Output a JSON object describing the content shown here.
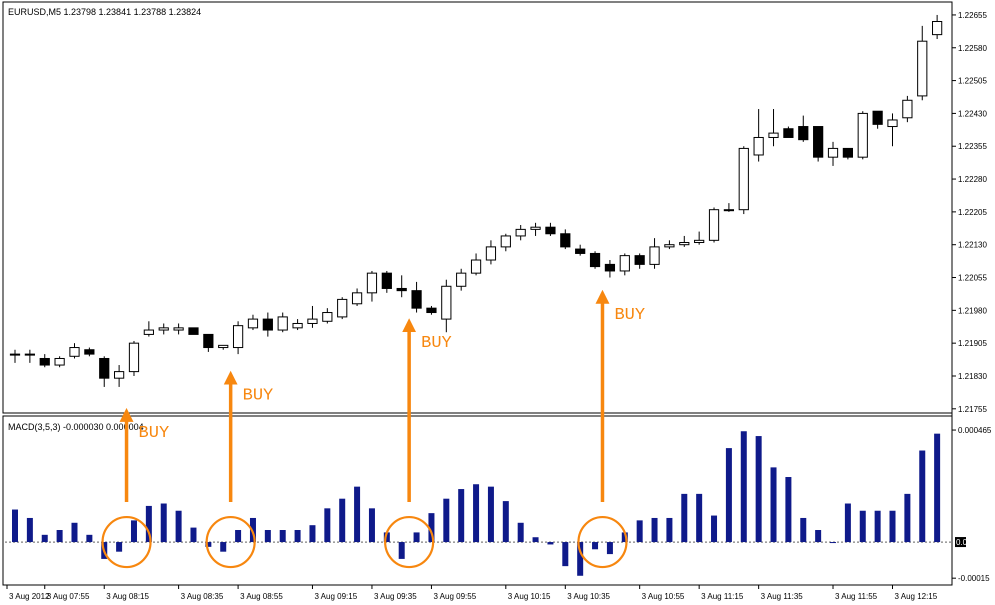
{
  "chart_data": [
    {
      "type": "candlestick",
      "header": "EURUSD,M5  1.23798 1.23841 1.23788 1.23824",
      "ylim": [
        1.2175,
        1.2268
      ],
      "y_ticks": [
        "1.22655",
        "1.22580",
        "1.22505",
        "1.22430",
        "1.22355",
        "1.22280",
        "1.22205",
        "1.22130",
        "1.22055",
        "1.21980",
        "1.21905",
        "1.21830",
        "1.21755"
      ],
      "y_tick_values": [
        1.22655,
        1.2258,
        1.22505,
        1.2243,
        1.22355,
        1.2228,
        1.22205,
        1.2213,
        1.22055,
        1.2198,
        1.21905,
        1.2183,
        1.21755
      ],
      "candles": [
        {
          "o": 1.2188,
          "h": 1.2189,
          "l": 1.2186,
          "c": 1.2188
        },
        {
          "o": 1.2188,
          "h": 1.2189,
          "l": 1.2186,
          "c": 1.2188
        },
        {
          "o": 1.2187,
          "h": 1.2188,
          "l": 1.2185,
          "c": 1.21855
        },
        {
          "o": 1.21855,
          "h": 1.21875,
          "l": 1.2185,
          "c": 1.2187
        },
        {
          "o": 1.21875,
          "h": 1.21905,
          "l": 1.2187,
          "c": 1.21895
        },
        {
          "o": 1.2189,
          "h": 1.21895,
          "l": 1.21875,
          "c": 1.2188
        },
        {
          "o": 1.2187,
          "h": 1.21875,
          "l": 1.21805,
          "c": 1.21825
        },
        {
          "o": 1.21825,
          "h": 1.21855,
          "l": 1.21805,
          "c": 1.2184
        },
        {
          "o": 1.2184,
          "h": 1.2191,
          "l": 1.2183,
          "c": 1.21905
        },
        {
          "o": 1.21925,
          "h": 1.21955,
          "l": 1.2192,
          "c": 1.21935
        },
        {
          "o": 1.21935,
          "h": 1.2195,
          "l": 1.21925,
          "c": 1.2194
        },
        {
          "o": 1.21935,
          "h": 1.2195,
          "l": 1.21925,
          "c": 1.2194
        },
        {
          "o": 1.2194,
          "h": 1.2194,
          "l": 1.21925,
          "c": 1.21925
        },
        {
          "o": 1.21925,
          "h": 1.21925,
          "l": 1.21885,
          "c": 1.21895
        },
        {
          "o": 1.21895,
          "h": 1.219,
          "l": 1.2189,
          "c": 1.219
        },
        {
          "o": 1.21895,
          "h": 1.21955,
          "l": 1.2188,
          "c": 1.21945
        },
        {
          "o": 1.2194,
          "h": 1.2197,
          "l": 1.21935,
          "c": 1.2196
        },
        {
          "o": 1.2196,
          "h": 1.21975,
          "l": 1.2192,
          "c": 1.21935
        },
        {
          "o": 1.21935,
          "h": 1.21975,
          "l": 1.2193,
          "c": 1.21965
        },
        {
          "o": 1.2194,
          "h": 1.2196,
          "l": 1.21935,
          "c": 1.2195
        },
        {
          "o": 1.2195,
          "h": 1.2199,
          "l": 1.2194,
          "c": 1.2196
        },
        {
          "o": 1.21955,
          "h": 1.21985,
          "l": 1.2195,
          "c": 1.21975
        },
        {
          "o": 1.21965,
          "h": 1.2201,
          "l": 1.2196,
          "c": 1.22005
        },
        {
          "o": 1.21995,
          "h": 1.2203,
          "l": 1.2199,
          "c": 1.2202
        },
        {
          "o": 1.2202,
          "h": 1.2207,
          "l": 1.22,
          "c": 1.22065
        },
        {
          "o": 1.22065,
          "h": 1.2207,
          "l": 1.2202,
          "c": 1.2203
        },
        {
          "o": 1.2203,
          "h": 1.2206,
          "l": 1.2201,
          "c": 1.22025
        },
        {
          "o": 1.22025,
          "h": 1.22045,
          "l": 1.21975,
          "c": 1.21985
        },
        {
          "o": 1.21985,
          "h": 1.2199,
          "l": 1.2197,
          "c": 1.21975
        },
        {
          "o": 1.2196,
          "h": 1.2205,
          "l": 1.2193,
          "c": 1.22035
        },
        {
          "o": 1.22035,
          "h": 1.22075,
          "l": 1.22025,
          "c": 1.22065
        },
        {
          "o": 1.22065,
          "h": 1.2211,
          "l": 1.2206,
          "c": 1.22095
        },
        {
          "o": 1.22095,
          "h": 1.2214,
          "l": 1.22085,
          "c": 1.22125
        },
        {
          "o": 1.22125,
          "h": 1.22155,
          "l": 1.22115,
          "c": 1.2215
        },
        {
          "o": 1.2215,
          "h": 1.22175,
          "l": 1.2214,
          "c": 1.22165
        },
        {
          "o": 1.22165,
          "h": 1.2218,
          "l": 1.2215,
          "c": 1.2217
        },
        {
          "o": 1.2217,
          "h": 1.2218,
          "l": 1.2215,
          "c": 1.22155
        },
        {
          "o": 1.22155,
          "h": 1.22165,
          "l": 1.2212,
          "c": 1.22125
        },
        {
          "o": 1.2212,
          "h": 1.2213,
          "l": 1.22105,
          "c": 1.2211
        },
        {
          "o": 1.2211,
          "h": 1.22115,
          "l": 1.22075,
          "c": 1.2208
        },
        {
          "o": 1.22085,
          "h": 1.22095,
          "l": 1.22055,
          "c": 1.2207
        },
        {
          "o": 1.2207,
          "h": 1.2211,
          "l": 1.2206,
          "c": 1.22105
        },
        {
          "o": 1.22105,
          "h": 1.2211,
          "l": 1.22075,
          "c": 1.22085
        },
        {
          "o": 1.22085,
          "h": 1.22145,
          "l": 1.22075,
          "c": 1.22125
        },
        {
          "o": 1.22125,
          "h": 1.2214,
          "l": 1.2212,
          "c": 1.2213
        },
        {
          "o": 1.2213,
          "h": 1.2215,
          "l": 1.22125,
          "c": 1.22135
        },
        {
          "o": 1.22135,
          "h": 1.2216,
          "l": 1.2213,
          "c": 1.2214
        },
        {
          "o": 1.2214,
          "h": 1.22215,
          "l": 1.22135,
          "c": 1.2221
        },
        {
          "o": 1.2221,
          "h": 1.22225,
          "l": 1.22205,
          "c": 1.2221
        },
        {
          "o": 1.2221,
          "h": 1.22355,
          "l": 1.222,
          "c": 1.2235
        },
        {
          "o": 1.22335,
          "h": 1.2244,
          "l": 1.2232,
          "c": 1.22375
        },
        {
          "o": 1.22375,
          "h": 1.2244,
          "l": 1.22355,
          "c": 1.22385
        },
        {
          "o": 1.22395,
          "h": 1.224,
          "l": 1.22375,
          "c": 1.22375
        },
        {
          "o": 1.224,
          "h": 1.22425,
          "l": 1.22365,
          "c": 1.2237
        },
        {
          "o": 1.224,
          "h": 1.224,
          "l": 1.2232,
          "c": 1.2233
        },
        {
          "o": 1.2233,
          "h": 1.22365,
          "l": 1.2231,
          "c": 1.2235
        },
        {
          "o": 1.2235,
          "h": 1.2235,
          "l": 1.22325,
          "c": 1.2233
        },
        {
          "o": 1.2233,
          "h": 1.22435,
          "l": 1.22325,
          "c": 1.2243
        },
        {
          "o": 1.22435,
          "h": 1.22435,
          "l": 1.22395,
          "c": 1.22405
        },
        {
          "o": 1.224,
          "h": 1.2243,
          "l": 1.22355,
          "c": 1.22415
        },
        {
          "o": 1.2242,
          "h": 1.2247,
          "l": 1.2241,
          "c": 1.2246
        },
        {
          "o": 1.2247,
          "h": 1.2263,
          "l": 1.2246,
          "c": 1.22595
        },
        {
          "o": 1.2261,
          "h": 1.22655,
          "l": 1.226,
          "c": 1.2264
        }
      ]
    },
    {
      "type": "bar",
      "title": "MACD(3,5,3) -0.000030 0.000004",
      "ylim": [
        -0.00017,
        0.000515
      ],
      "y_ticks": [
        "0.000465",
        "0.00",
        "-0.00015"
      ],
      "y_tick_values": [
        0.000465,
        0,
        -0.00015
      ],
      "values": [
        0.000135,
        0.0001,
        3e-05,
        5e-05,
        8e-05,
        3e-05,
        -7e-05,
        -4e-05,
        9e-05,
        0.00015,
        0.00016,
        0.00013,
        6e-05,
        -2e-05,
        -4e-05,
        5e-05,
        0.0001,
        5e-05,
        5e-05,
        5e-05,
        7e-05,
        0.00014,
        0.00018,
        0.00023,
        0.00014,
        4e-05,
        -7e-05,
        4e-05,
        0.00012,
        0.00018,
        0.00022,
        0.00024,
        0.00023,
        0.00017,
        8e-05,
        2e-05,
        -1e-05,
        -0.0001,
        -0.00014,
        -3e-05,
        -5e-05,
        4e-05,
        9e-05,
        0.0001,
        0.0001,
        0.0002,
        0.0002,
        0.00011,
        0.00039,
        0.00046,
        0.00044,
        0.00031,
        0.00027,
        0.0001,
        5e-05,
        0.0,
        0.00016,
        0.00013,
        0.00013,
        0.00013,
        0.0002,
        0.00038,
        0.00045
      ],
      "legend_marker": "0.00"
    }
  ],
  "x_axis": {
    "labels": [
      "3 Aug 2012",
      "3 Aug 07:55",
      "3 Aug 08:15",
      "3 Aug 08:35",
      "3 Aug 08:55",
      "3 Aug 09:15",
      "3 Aug 09:35",
      "3 Aug 09:55",
      "3 Aug 10:15",
      "3 Aug 10:35",
      "3 Aug 10:55",
      "3 Aug 11:15",
      "3 Aug 11:35",
      "3 Aug 11:55",
      "3 Aug 12:15"
    ]
  },
  "annotations": {
    "buy_labels": [
      "BUY",
      "BUY",
      "BUY",
      "BUY"
    ],
    "buy_bar_indices": [
      7,
      14,
      26,
      39
    ],
    "colors": {
      "annotation": "#f7870f",
      "histogram": "#0f1a8a",
      "bull_fill": "#ffffff",
      "bear_fill": "#000000"
    }
  }
}
